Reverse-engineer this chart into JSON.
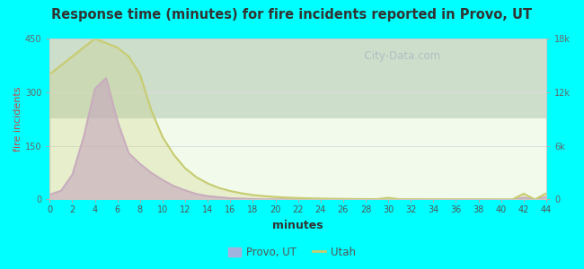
{
  "title": "Response time (minutes) for fire incidents reported in Provo, UT",
  "xlabel": "minutes",
  "ylabel_left": "fire incidents",
  "bg_color": "#00FFFF",
  "plot_bg_top": "#f0faf0",
  "plot_bg_bottom": "#e8f5e0",
  "left_ylim": [
    0,
    450
  ],
  "right_ylim": [
    0,
    18000
  ],
  "left_yticks": [
    0,
    150,
    300,
    450
  ],
  "right_yticks": [
    0,
    6000,
    12000,
    18000
  ],
  "right_yticklabels": [
    "0",
    "6k",
    "12k",
    "18k"
  ],
  "xticks": [
    0,
    2,
    4,
    6,
    8,
    10,
    12,
    14,
    16,
    18,
    20,
    22,
    24,
    26,
    28,
    30,
    32,
    34,
    36,
    38,
    40,
    42,
    44
  ],
  "provo_color": "#c8a0d8",
  "utah_color": "#c8cc70",
  "watermark": "  City-Data.com",
  "legend_provo": "Provo, UT",
  "legend_utah": "Utah",
  "provo_x": [
    0,
    1,
    2,
    3,
    4,
    5,
    6,
    7,
    8,
    9,
    10,
    11,
    12,
    13,
    14,
    15,
    16,
    17,
    18,
    19,
    20,
    21,
    22,
    23,
    24,
    25,
    26,
    27,
    28,
    29,
    30,
    31,
    32,
    33,
    34,
    35,
    36,
    37,
    38,
    39,
    40,
    41,
    42,
    43,
    44
  ],
  "provo_y": [
    14,
    25,
    70,
    175,
    310,
    340,
    220,
    130,
    100,
    75,
    55,
    38,
    26,
    16,
    10,
    7,
    4,
    3,
    2,
    1,
    1,
    1,
    1,
    1,
    0,
    0,
    0,
    0,
    0,
    0,
    0,
    0,
    0,
    0,
    0,
    0,
    0,
    0,
    0,
    0,
    0,
    0,
    6,
    0,
    8
  ],
  "utah_x": [
    0,
    1,
    2,
    3,
    4,
    5,
    6,
    7,
    8,
    9,
    10,
    11,
    12,
    13,
    14,
    15,
    16,
    17,
    18,
    19,
    20,
    21,
    22,
    23,
    24,
    25,
    26,
    27,
    28,
    29,
    30,
    31,
    32,
    33,
    34,
    35,
    36,
    37,
    38,
    39,
    40,
    41,
    42,
    43,
    44
  ],
  "utah_y": [
    14000,
    15000,
    16000,
    17000,
    18000,
    17500,
    17000,
    16000,
    14000,
    10000,
    7000,
    5000,
    3500,
    2500,
    1800,
    1300,
    950,
    700,
    500,
    380,
    290,
    220,
    170,
    135,
    110,
    90,
    75,
    62,
    52,
    45,
    200,
    35,
    30,
    28,
    25,
    22,
    20,
    18,
    15,
    14,
    12,
    10,
    650,
    8,
    700
  ]
}
